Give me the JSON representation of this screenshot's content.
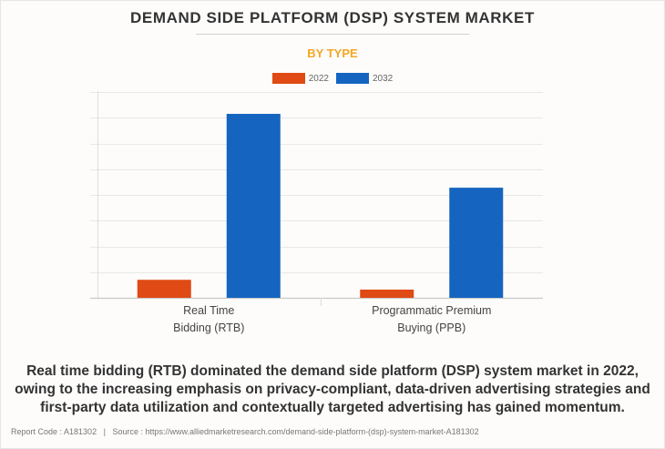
{
  "header": {
    "title": "DEMAND SIDE PLATFORM (DSP) SYSTEM MARKET",
    "subtitle": "BY TYPE"
  },
  "legend": [
    {
      "label": "2022",
      "color": "#e04a14"
    },
    {
      "label": "2032",
      "color": "#1565c0"
    }
  ],
  "chart_data": {
    "type": "bar",
    "title": "DEMAND SIDE PLATFORM (DSP) SYSTEM MARKET",
    "subtitle": "BY TYPE",
    "xlabel": "",
    "ylabel": "",
    "y_units": "relative (gridline units; no axis values shown)",
    "ylim": [
      0,
      8
    ],
    "grid": true,
    "legend_position": "top-center",
    "categories": [
      "Real Time Bidding (RTB)",
      "Programmatic Premium Buying (PPB)"
    ],
    "category_label_lines": [
      [
        "Real Time",
        "Bidding (RTB)"
      ],
      [
        "Programmatic Premium",
        "Buying (PPB)"
      ]
    ],
    "series": [
      {
        "name": "2022",
        "color": "#e04a14",
        "values": [
          0.7,
          0.32
        ]
      },
      {
        "name": "2032",
        "color": "#1565c0",
        "values": [
          7.15,
          4.28
        ]
      }
    ]
  },
  "summary": "Real time bidding (RTB) dominated the demand side platform (DSP) system market in 2022, owing to the increasing emphasis on privacy-compliant, data-driven advertising strategies and first-party data utilization and contextually targeted advertising has gained momentum.",
  "footer": {
    "report_code_label": "Report Code : A181302",
    "separator": "|",
    "source_label": "Source : https://www.alliedmarketresearch.com/demand-side-platform-(dsp)-system-market-A181302"
  }
}
